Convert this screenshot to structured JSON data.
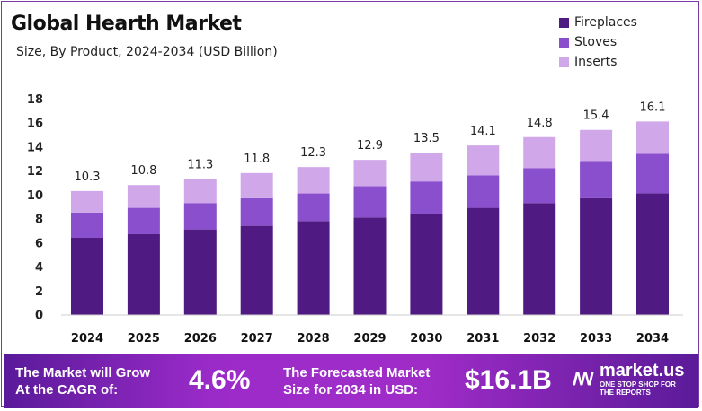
{
  "chart_data": {
    "type": "bar",
    "stacked": true,
    "title": "Global Hearth Market",
    "subtitle": "Size, By Product, 2024-2034 (USD Billion)",
    "categories": [
      "2024",
      "2025",
      "2026",
      "2027",
      "2028",
      "2029",
      "2030",
      "2031",
      "2032",
      "2033",
      "2034"
    ],
    "series": [
      {
        "name": "Fireplaces",
        "color": "#4f1a82",
        "values": [
          6.4,
          6.7,
          7.1,
          7.4,
          7.8,
          8.1,
          8.4,
          8.9,
          9.3,
          9.7,
          10.1
        ]
      },
      {
        "name": "Stoves",
        "color": "#8a4fcc",
        "values": [
          2.1,
          2.2,
          2.2,
          2.3,
          2.3,
          2.6,
          2.7,
          2.7,
          2.9,
          3.1,
          3.3
        ]
      },
      {
        "name": "Inserts",
        "color": "#d0a8ea",
        "values": [
          1.8,
          1.9,
          2.0,
          2.1,
          2.2,
          2.2,
          2.4,
          2.5,
          2.6,
          2.6,
          2.7
        ]
      }
    ],
    "totals": [
      "10.3",
      "10.8",
      "11.3",
      "11.8",
      "12.3",
      "12.9",
      "13.5",
      "14.1",
      "14.8",
      "15.4",
      "16.1"
    ],
    "yticks": [
      "0",
      "2",
      "4",
      "6",
      "8",
      "10",
      "12",
      "14",
      "16",
      "18"
    ],
    "ylim": [
      0,
      18
    ],
    "grid": false,
    "legend": "top-right"
  },
  "banner": {
    "cagr_label_1": "The Market will Grow",
    "cagr_label_2": "At the CAGR of:",
    "cagr_value": "4.6%",
    "forecast_label_1": "The Forecasted Market",
    "forecast_label_2": "Size for 2034 in USD:",
    "forecast_value": "$16.1B",
    "logo_name": "market.us",
    "logo_tagline": "ONE STOP SHOP FOR THE REPORTS"
  }
}
